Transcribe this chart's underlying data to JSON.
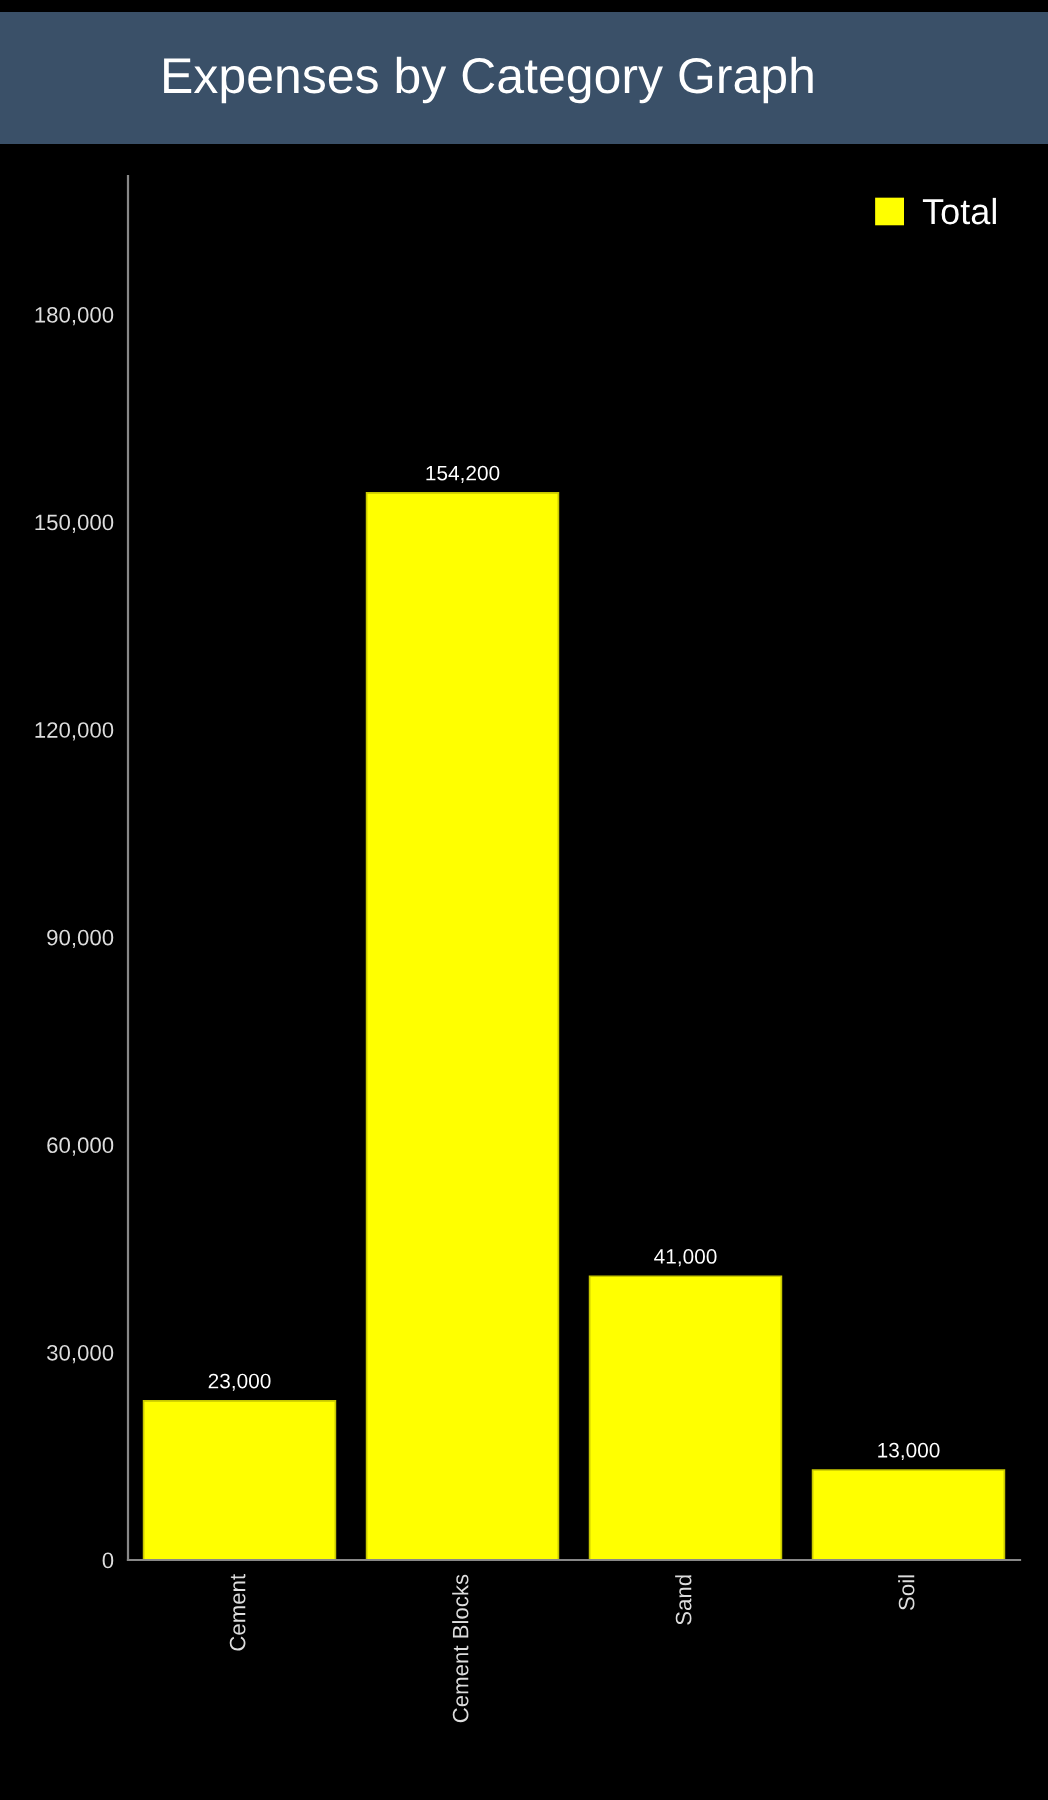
{
  "chart_data": {
    "type": "bar",
    "title": "Expenses by Category Graph",
    "categories": [
      "Cement",
      "Cement Blocks",
      "Sand",
      "Soil"
    ],
    "series": [
      {
        "name": "Total",
        "color": "#ffff00",
        "values": [
          23000,
          154200,
          41000,
          13000
        ],
        "value_labels": [
          "23,000",
          "154,200",
          "41,000",
          "13,000"
        ]
      }
    ],
    "ylim": [
      0,
      200000
    ],
    "yticks": [
      0,
      {
        "value": 30000,
        "label": "30,000"
      },
      {
        "value": 60000,
        "label": "60,000"
      },
      {
        "value": 90000,
        "label": "90,000"
      },
      {
        "value": 120000,
        "label": "120,000"
      },
      {
        "value": 150000,
        "label": "150,000"
      },
      {
        "value": 180000,
        "label": "180,000"
      }
    ],
    "legend": "top right"
  }
}
